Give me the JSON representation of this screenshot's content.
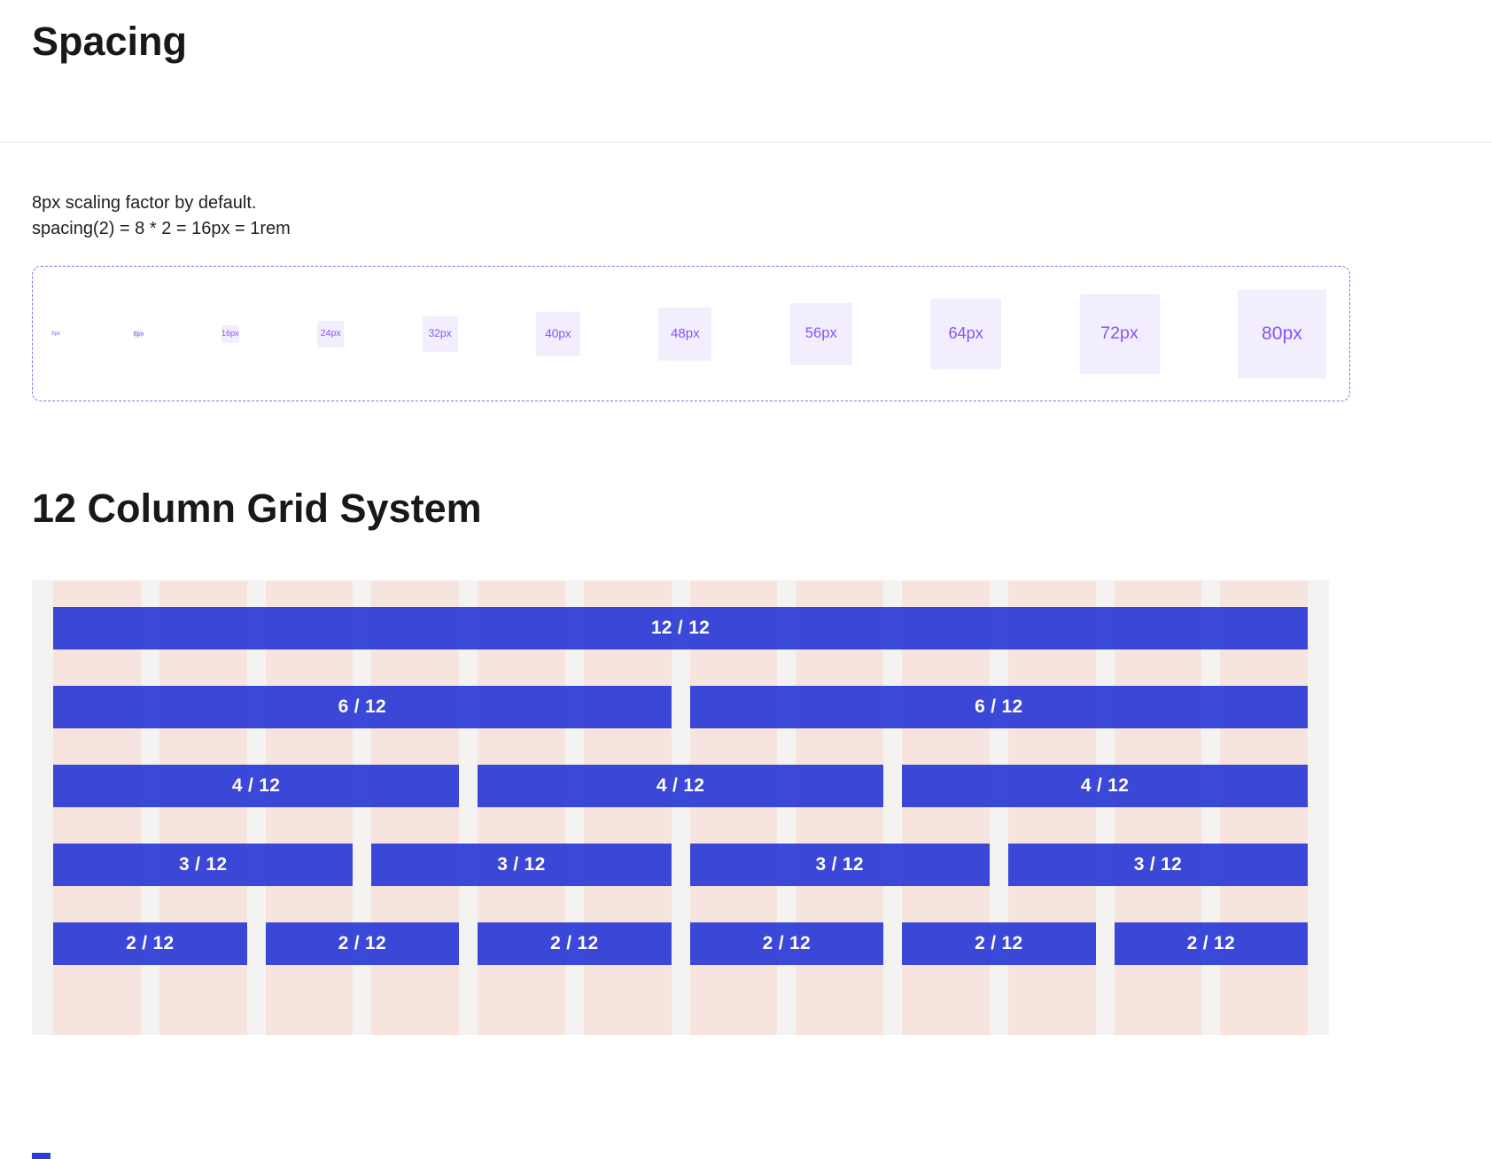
{
  "spacing": {
    "title": "Spacing",
    "description": [
      "8px scaling factor by default.",
      "spacing(2) = 8 * 2 = 16px = 1rem"
    ],
    "items": [
      {
        "label": "0px",
        "value": 0
      },
      {
        "label": "8px",
        "value": 8
      },
      {
        "label": "16px",
        "value": 16
      },
      {
        "label": "24px",
        "value": 24
      },
      {
        "label": "32px",
        "value": 32
      },
      {
        "label": "40px",
        "value": 40
      },
      {
        "label": "48px",
        "value": 48
      },
      {
        "label": "56px",
        "value": 56
      },
      {
        "label": "64px",
        "value": 64
      },
      {
        "label": "72px",
        "value": 72
      },
      {
        "label": "80px",
        "value": 80
      }
    ],
    "colors": {
      "swatch_bg": "#f3eefe",
      "swatch_text": "#8655f2",
      "dashed_border": "#7e72ee"
    }
  },
  "grid": {
    "title": "12 Column Grid System",
    "columns": 12,
    "rows": [
      {
        "label": "12 / 12",
        "span": 12,
        "count": 1
      },
      {
        "label": "6 / 12",
        "span": 6,
        "count": 2
      },
      {
        "label": "4 / 12",
        "span": 4,
        "count": 3
      },
      {
        "label": "3 / 12",
        "span": 3,
        "count": 4
      },
      {
        "label": "2 / 12",
        "span": 2,
        "count": 6
      }
    ],
    "colors": {
      "bar": "#2c3bd6",
      "bar_text": "#ffffff",
      "column_stripe": "#f7e4de",
      "background": "#f5f3f2"
    }
  }
}
